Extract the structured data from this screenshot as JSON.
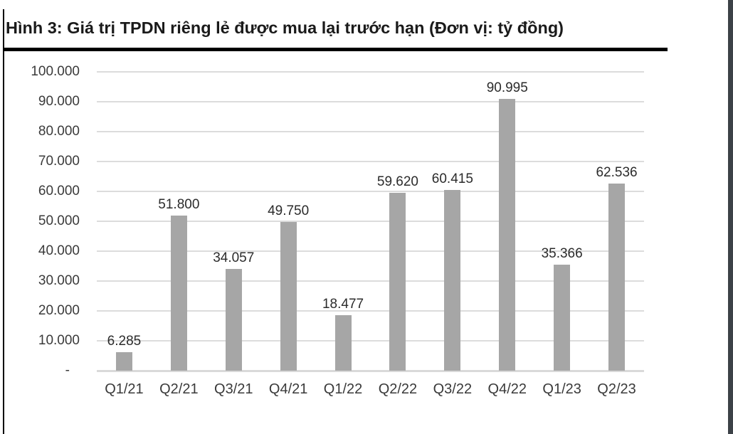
{
  "page": {
    "title": "Hình 3: Giá trị TPDN riêng lẻ được mua lại trước hạn (Đơn vị: tỷ đồng)"
  },
  "chart_data": {
    "type": "bar",
    "title": "Hình 3: Giá trị TPDN riêng lẻ được mua lại trước hạn (Đơn vị: tỷ đồng)",
    "unit_label": "tỷ đồng",
    "categories": [
      "Q1/21",
      "Q2/21",
      "Q3/21",
      "Q4/21",
      "Q1/22",
      "Q2/22",
      "Q3/22",
      "Q4/22",
      "Q1/23",
      "Q2/23"
    ],
    "values": [
      6285,
      51800,
      34057,
      49750,
      18477,
      59620,
      60415,
      90995,
      35366,
      62536
    ],
    "value_labels": [
      "6.285",
      "51.800",
      "34.057",
      "49.750",
      "18.477",
      "59.620",
      "60.415",
      "90.995",
      "35.366",
      "62.536"
    ],
    "y_axis": {
      "min": 0,
      "max": 100000,
      "step": 10000,
      "tick_labels": [
        "100.000",
        "90.000",
        "80.000",
        "70.000",
        "60.000",
        "50.000",
        "40.000",
        "30.000",
        "20.000",
        "10.000",
        "-"
      ]
    },
    "grid": true,
    "legend": null,
    "colors": {
      "bar": "#a6a6a6",
      "gridline": "#dcdcdc",
      "axis_text": "#3a3a3a",
      "title_text": "#1a1a1a",
      "right_edge_strip": "#3c4147"
    }
  }
}
